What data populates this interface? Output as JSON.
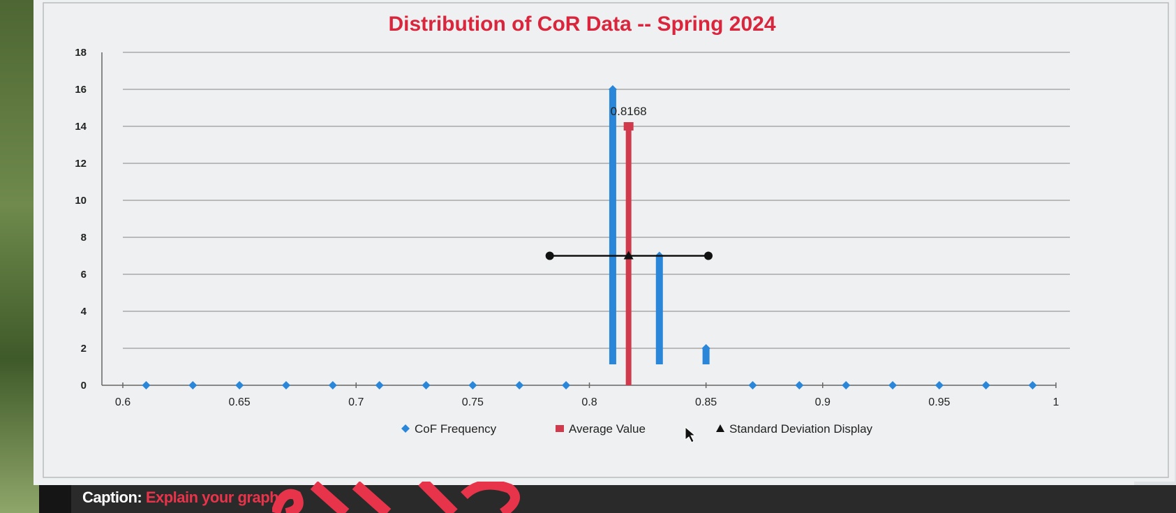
{
  "caption": {
    "label": "Caption:",
    "prompt": "Explain your graph"
  },
  "colors": {
    "title": "#d9263d",
    "cof": "#2a86d8",
    "average": "#d03a4c",
    "stddev": "#111111",
    "grid": "#9a9a9a"
  },
  "chart_data": {
    "type": "scatter",
    "title": "Distribution of CoR Data -- Spring 2024",
    "xlabel": "",
    "ylabel": "",
    "xlim": [
      0.6,
      1
    ],
    "ylim": [
      0,
      18
    ],
    "x_ticks": [
      "0.6",
      "0.65",
      "0.7",
      "0.75",
      "0.8",
      "0.85",
      "0.9",
      "0.95",
      "1"
    ],
    "y_ticks": [
      "0",
      "2",
      "4",
      "6",
      "8",
      "10",
      "12",
      "14",
      "16",
      "18"
    ],
    "grid": true,
    "legend": "bottom",
    "series": [
      {
        "name": "CoF Frequency",
        "style": "markers-with-drop-bars",
        "marker": "diamond",
        "points": [
          {
            "x": 0.61,
            "y": 0
          },
          {
            "x": 0.63,
            "y": 0
          },
          {
            "x": 0.65,
            "y": 0
          },
          {
            "x": 0.67,
            "y": 0
          },
          {
            "x": 0.69,
            "y": 0
          },
          {
            "x": 0.71,
            "y": 0
          },
          {
            "x": 0.73,
            "y": 0
          },
          {
            "x": 0.75,
            "y": 0
          },
          {
            "x": 0.77,
            "y": 0
          },
          {
            "x": 0.79,
            "y": 0
          },
          {
            "x": 0.81,
            "y": 16
          },
          {
            "x": 0.83,
            "y": 7
          },
          {
            "x": 0.85,
            "y": 2
          },
          {
            "x": 0.87,
            "y": 0
          },
          {
            "x": 0.89,
            "y": 0
          },
          {
            "x": 0.91,
            "y": 0
          },
          {
            "x": 0.93,
            "y": 0
          },
          {
            "x": 0.95,
            "y": 0
          },
          {
            "x": 0.97,
            "y": 0
          },
          {
            "x": 0.99,
            "y": 0
          }
        ]
      },
      {
        "name": "Average Value",
        "style": "bar",
        "marker": "square",
        "points": [
          {
            "x": 0.8168,
            "y": 14
          }
        ],
        "data_label": "0.8168"
      },
      {
        "name": "Standard Deviation Display",
        "style": "horizontal-error-bar",
        "marker": "triangle",
        "points": [
          {
            "x": 0.8168,
            "y": 7
          }
        ],
        "x_error": [
          0.783,
          0.851
        ]
      }
    ]
  }
}
